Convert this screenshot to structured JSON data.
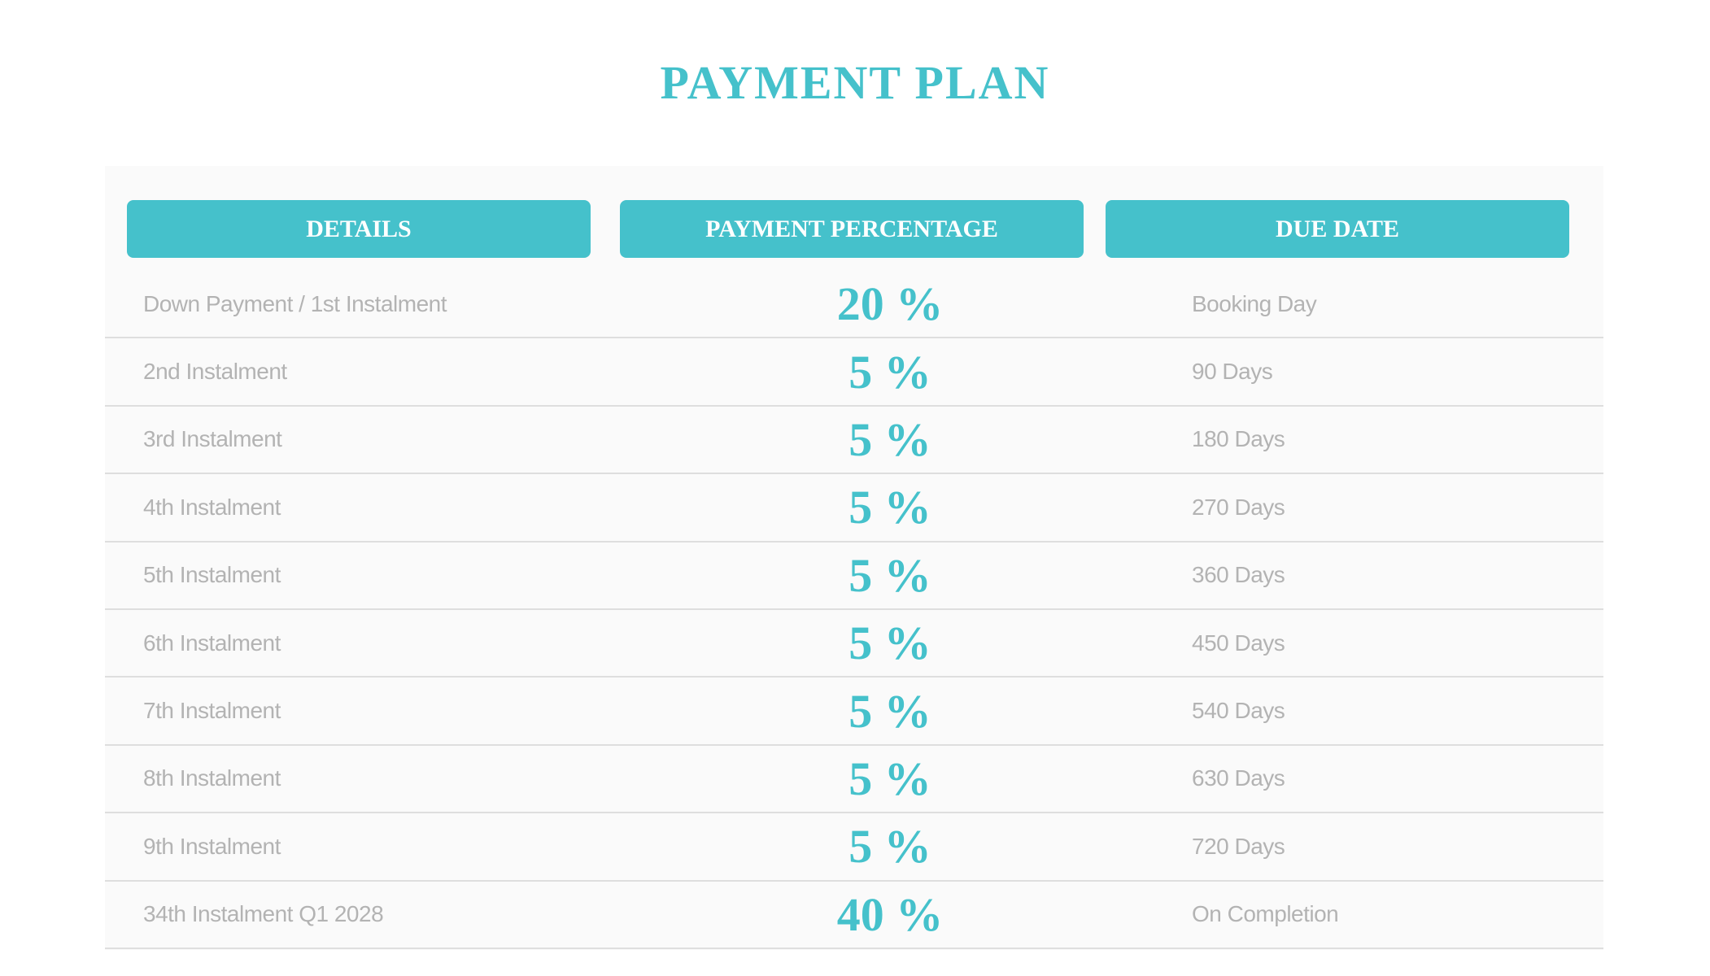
{
  "title": "PAYMENT PLAN",
  "accent_color": "#45c1cb",
  "headers": [
    "DETAILS",
    "PAYMENT PERCENTAGE",
    "DUE DATE"
  ],
  "rows": [
    {
      "details": "Down Payment / 1st Instalment",
      "percentage": "20 %",
      "due": "Booking Day"
    },
    {
      "details": "2nd Instalment",
      "percentage": "5 %",
      "due": "90 Days"
    },
    {
      "details": "3rd Instalment",
      "percentage": "5 %",
      "due": "180 Days"
    },
    {
      "details": "4th Instalment",
      "percentage": "5 %",
      "due": "270 Days"
    },
    {
      "details": "5th Instalment",
      "percentage": "5 %",
      "due": "360 Days"
    },
    {
      "details": "6th Instalment",
      "percentage": "5 %",
      "due": "450 Days"
    },
    {
      "details": "7th Instalment",
      "percentage": "5 %",
      "due": "540 Days"
    },
    {
      "details": "8th Instalment",
      "percentage": "5 %",
      "due": "630 Days"
    },
    {
      "details": "9th Instalment",
      "percentage": "5 %",
      "due": "720 Days"
    },
    {
      "details": "34th Instalment Q1 2028",
      "percentage": "40 %",
      "due": "On Completion"
    }
  ]
}
